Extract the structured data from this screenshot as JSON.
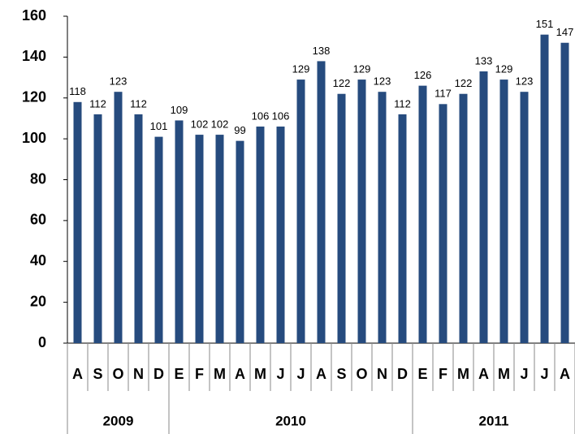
{
  "chart_data": {
    "type": "bar",
    "categories": [
      "A",
      "S",
      "O",
      "N",
      "D",
      "E",
      "F",
      "M",
      "A",
      "M",
      "J",
      "J",
      "A",
      "S",
      "O",
      "N",
      "D",
      "E",
      "F",
      "M",
      "A",
      "M",
      "J",
      "J",
      "A"
    ],
    "values": [
      118,
      112,
      123,
      112,
      101,
      109,
      102,
      102,
      99,
      106,
      106,
      129,
      138,
      122,
      129,
      123,
      112,
      126,
      117,
      122,
      133,
      129,
      123,
      151,
      147
    ],
    "x_groups": [
      "2009",
      "2010",
      "2011"
    ],
    "color": "#264b7e",
    "ylim": [
      0,
      160
    ],
    "yticks": [
      0,
      20,
      40,
      60,
      80,
      100,
      120,
      140,
      160
    ],
    "grid": false
  }
}
